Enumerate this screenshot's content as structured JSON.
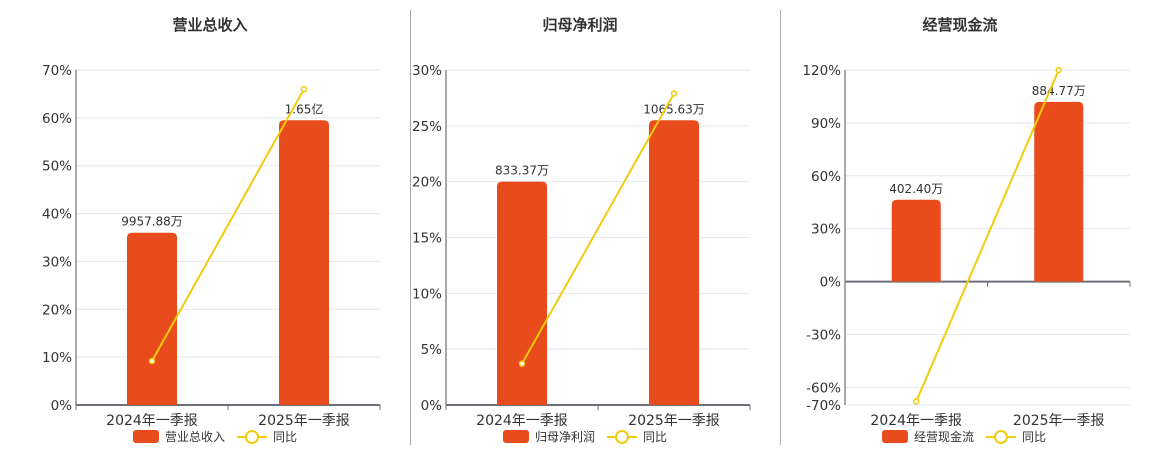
{
  "colors": {
    "bar": "#E84C1C",
    "line": "#F2CC0C",
    "grid": "#E2E8F0",
    "axis": "#6E7079"
  },
  "chart_data": [
    {
      "type": "bar+line",
      "title": "营业总收入",
      "categories": [
        "2024年一季报",
        "2025年一季报"
      ],
      "series": [
        {
          "name": "营业总收入",
          "type": "bar",
          "values": [
            9957.88,
            16500
          ],
          "unit": "万",
          "labels": [
            "9957.88万",
            "1.65亿"
          ],
          "plotted_pct": [
            36,
            59.5
          ]
        },
        {
          "name": "同比",
          "type": "line",
          "values": [
            9.2,
            66
          ],
          "unit": "%"
        }
      ],
      "yaxis": {
        "ticks": [
          "0%",
          "10%",
          "20%",
          "30%",
          "40%",
          "50%",
          "60%",
          "70%"
        ],
        "ylim": [
          0,
          70
        ]
      },
      "grid": true,
      "legend_position": "bottom"
    },
    {
      "type": "bar+line",
      "title": "归母净利润",
      "categories": [
        "2024年一季报",
        "2025年一季报"
      ],
      "series": [
        {
          "name": "归母净利润",
          "type": "bar",
          "values": [
            833.37,
            1065.63
          ],
          "unit": "万",
          "labels": [
            "833.37万",
            "1065.63万"
          ],
          "plotted_pct": [
            20,
            25.5
          ]
        },
        {
          "name": "同比",
          "type": "line",
          "values": [
            3.7,
            27.9
          ],
          "unit": "%"
        }
      ],
      "yaxis": {
        "ticks": [
          "0%",
          "5%",
          "10%",
          "15%",
          "20%",
          "25%",
          "30%"
        ],
        "ylim": [
          0,
          30
        ]
      },
      "grid": true,
      "legend_position": "bottom"
    },
    {
      "type": "bar+line",
      "title": "经营现金流",
      "categories": [
        "2024年一季报",
        "2025年一季报"
      ],
      "series": [
        {
          "name": "经营现金流",
          "type": "bar",
          "values": [
            402.4,
            884.77
          ],
          "unit": "万",
          "labels": [
            "402.40万",
            "884.77万"
          ],
          "plotted_pct": [
            46.4,
            101.9
          ]
        },
        {
          "name": "同比",
          "type": "line",
          "values": [
            -68,
            120
          ],
          "unit": "%"
        }
      ],
      "yaxis": {
        "ticks": [
          "-70%",
          "-60%",
          "-30%",
          "0%",
          "30%",
          "60%",
          "90%",
          "120%"
        ],
        "ylim": [
          -70,
          120
        ]
      },
      "grid": true,
      "legend_position": "bottom"
    }
  ],
  "charts": [
    {
      "title": "营业总收入",
      "bar_legend": "营业总收入",
      "line_legend": "同比"
    },
    {
      "title": "归母净利润",
      "bar_legend": "归母净利润",
      "line_legend": "同比"
    },
    {
      "title": "经营现金流",
      "bar_legend": "经营现金流",
      "line_legend": "同比"
    }
  ]
}
